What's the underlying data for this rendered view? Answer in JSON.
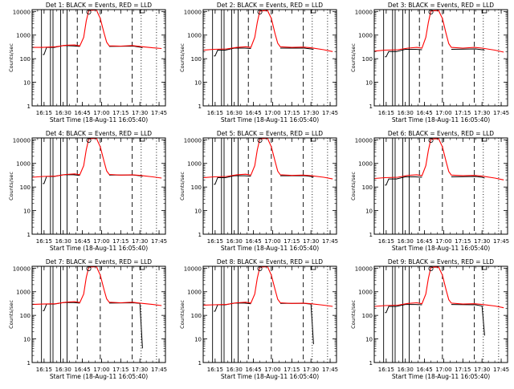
{
  "chart_data": {
    "type": "line",
    "yscale": "log",
    "ylabel": "Counts/sec",
    "xlabel": "Start Time (18-Aug-11 16:05:40)",
    "yticks": [
      "1",
      "10",
      "100",
      "1000",
      "10000"
    ],
    "xticks": [
      "16:15",
      "16:30",
      "16:45",
      "17:00",
      "17:15",
      "17:30",
      "17:45"
    ],
    "ylim": [
      1,
      12000
    ],
    "xlim": [
      "16:05:40",
      "17:50"
    ],
    "series_colors": {
      "events": "#000000",
      "lld": "#ff0000"
    },
    "panels": [
      {
        "title": "Det 1: BLACK = Events, RED = LLD",
        "lld": [
          [
            "16:06",
            300
          ],
          [
            "16:14",
            300
          ],
          [
            "16:24",
            320
          ],
          [
            "16:32",
            370
          ],
          [
            "16:39",
            380
          ],
          [
            "16:43",
            350
          ],
          [
            "16:46",
            800
          ],
          [
            "16:48",
            4000
          ],
          [
            "16:50",
            11000
          ],
          [
            "16:56",
            11500
          ],
          [
            "16:59",
            5000
          ],
          [
            "17:02",
            1200
          ],
          [
            "17:04",
            500
          ],
          [
            "17:06",
            350
          ],
          [
            "17:15",
            340
          ],
          [
            "17:24",
            360
          ],
          [
            "17:30",
            330
          ],
          [
            "17:40",
            290
          ],
          [
            "17:47",
            270
          ]
        ],
        "events": [
          [
            "16:14",
            150
          ],
          [
            "16:15",
            150
          ],
          [
            "16:17",
            300
          ],
          [
            "16:23",
            300
          ],
          [
            "16:30",
            360
          ],
          [
            "16:38",
            350
          ],
          [
            "16:43",
            330
          ],
          [
            "17:06",
            330
          ],
          [
            "17:25",
            340
          ],
          [
            "17:30",
            310
          ],
          [
            "17:32",
            290
          ]
        ]
      },
      {
        "title": "Det 2: BLACK = Events, RED = LLD",
        "lld": [
          [
            "16:06",
            230
          ],
          [
            "16:14",
            250
          ],
          [
            "16:24",
            260
          ],
          [
            "16:32",
            300
          ],
          [
            "16:39",
            320
          ],
          [
            "16:43",
            300
          ],
          [
            "16:46",
            800
          ],
          [
            "16:48",
            3500
          ],
          [
            "16:50",
            10500
          ],
          [
            "16:56",
            11000
          ],
          [
            "16:59",
            5000
          ],
          [
            "17:02",
            1100
          ],
          [
            "17:04",
            450
          ],
          [
            "17:06",
            320
          ],
          [
            "17:15",
            300
          ],
          [
            "17:24",
            310
          ],
          [
            "17:30",
            290
          ],
          [
            "17:40",
            240
          ],
          [
            "17:47",
            200
          ]
        ],
        "events": [
          [
            "16:14",
            130
          ],
          [
            "16:15",
            130
          ],
          [
            "16:17",
            230
          ],
          [
            "16:23",
            230
          ],
          [
            "16:30",
            280
          ],
          [
            "16:38",
            280
          ],
          [
            "16:43",
            270
          ],
          [
            "17:06",
            280
          ],
          [
            "17:25",
            280
          ],
          [
            "17:30",
            260
          ],
          [
            "17:32",
            250
          ]
        ]
      },
      {
        "title": "Det 3: BLACK = Events, RED = LLD",
        "lld": [
          [
            "16:06",
            210
          ],
          [
            "16:14",
            230
          ],
          [
            "16:24",
            240
          ],
          [
            "16:32",
            280
          ],
          [
            "16:39",
            300
          ],
          [
            "16:43",
            280
          ],
          [
            "16:46",
            800
          ],
          [
            "16:48",
            3500
          ],
          [
            "16:50",
            10500
          ],
          [
            "16:56",
            11000
          ],
          [
            "16:59",
            5000
          ],
          [
            "17:02",
            1100
          ],
          [
            "17:04",
            430
          ],
          [
            "17:06",
            300
          ],
          [
            "17:15",
            280
          ],
          [
            "17:24",
            300
          ],
          [
            "17:30",
            280
          ],
          [
            "17:40",
            230
          ],
          [
            "17:47",
            190
          ]
        ],
        "events": [
          [
            "16:14",
            120
          ],
          [
            "16:15",
            120
          ],
          [
            "16:17",
            200
          ],
          [
            "16:23",
            200
          ],
          [
            "16:30",
            250
          ],
          [
            "16:38",
            250
          ],
          [
            "16:43",
            240
          ],
          [
            "17:06",
            250
          ],
          [
            "17:25",
            260
          ],
          [
            "17:30",
            240
          ],
          [
            "17:32",
            230
          ]
        ]
      },
      {
        "title": "Det 4: BLACK = Events, RED = LLD",
        "lld": [
          [
            "16:06",
            260
          ],
          [
            "16:14",
            280
          ],
          [
            "16:24",
            290
          ],
          [
            "16:32",
            340
          ],
          [
            "16:39",
            360
          ],
          [
            "16:43",
            330
          ],
          [
            "16:46",
            800
          ],
          [
            "16:48",
            3800
          ],
          [
            "16:50",
            11000
          ],
          [
            "16:56",
            11500
          ],
          [
            "16:59",
            5000
          ],
          [
            "17:02",
            1200
          ],
          [
            "17:04",
            480
          ],
          [
            "17:06",
            340
          ],
          [
            "17:15",
            320
          ],
          [
            "17:24",
            330
          ],
          [
            "17:30",
            310
          ],
          [
            "17:40",
            270
          ],
          [
            "17:47",
            240
          ]
        ],
        "events": [
          [
            "16:14",
            140
          ],
          [
            "16:15",
            140
          ],
          [
            "16:17",
            280
          ],
          [
            "16:23",
            280
          ],
          [
            "16:30",
            330
          ],
          [
            "16:38",
            330
          ],
          [
            "16:43",
            310
          ],
          [
            "17:06",
            320
          ],
          [
            "17:25",
            320
          ],
          [
            "17:30",
            300
          ],
          [
            "17:32",
            280
          ]
        ]
      },
      {
        "title": "Det 5: BLACK = Events, RED = LLD",
        "lld": [
          [
            "16:06",
            250
          ],
          [
            "16:14",
            270
          ],
          [
            "16:24",
            280
          ],
          [
            "16:32",
            330
          ],
          [
            "16:39",
            350
          ],
          [
            "16:43",
            320
          ],
          [
            "16:46",
            800
          ],
          [
            "16:48",
            3800
          ],
          [
            "16:50",
            11000
          ],
          [
            "16:56",
            11500
          ],
          [
            "16:59",
            5000
          ],
          [
            "17:02",
            1200
          ],
          [
            "17:04",
            470
          ],
          [
            "17:06",
            330
          ],
          [
            "17:15",
            310
          ],
          [
            "17:24",
            320
          ],
          [
            "17:30",
            300
          ],
          [
            "17:40",
            260
          ],
          [
            "17:47",
            220
          ]
        ],
        "events": [
          [
            "16:14",
            130
          ],
          [
            "16:15",
            130
          ],
          [
            "16:17",
            250
          ],
          [
            "16:23",
            250
          ],
          [
            "16:30",
            300
          ],
          [
            "16:38",
            300
          ],
          [
            "16:43",
            290
          ],
          [
            "17:06",
            300
          ],
          [
            "17:25",
            300
          ],
          [
            "17:30",
            280
          ],
          [
            "17:32",
            260
          ]
        ]
      },
      {
        "title": "Det 6: BLACK = Events, RED = LLD",
        "lld": [
          [
            "16:06",
            230
          ],
          [
            "16:14",
            250
          ],
          [
            "16:24",
            260
          ],
          [
            "16:32",
            310
          ],
          [
            "16:39",
            330
          ],
          [
            "16:43",
            300
          ],
          [
            "16:46",
            800
          ],
          [
            "16:48",
            3600
          ],
          [
            "16:50",
            10800
          ],
          [
            "16:56",
            11200
          ],
          [
            "16:59",
            5000
          ],
          [
            "17:02",
            1150
          ],
          [
            "17:04",
            450
          ],
          [
            "17:06",
            320
          ],
          [
            "17:15",
            300
          ],
          [
            "17:24",
            310
          ],
          [
            "17:30",
            290
          ],
          [
            "17:40",
            240
          ],
          [
            "17:47",
            200
          ]
        ],
        "events": [
          [
            "16:14",
            120
          ],
          [
            "16:15",
            120
          ],
          [
            "16:17",
            220
          ],
          [
            "16:23",
            220
          ],
          [
            "16:30",
            270
          ],
          [
            "16:38",
            270
          ],
          [
            "16:43",
            260
          ],
          [
            "17:06",
            270
          ],
          [
            "17:25",
            280
          ],
          [
            "17:30",
            260
          ],
          [
            "17:32",
            240
          ]
        ]
      },
      {
        "title": "Det 7: BLACK = Events, RED = LLD",
        "lld": [
          [
            "16:06",
            290
          ],
          [
            "16:14",
            300
          ],
          [
            "16:24",
            310
          ],
          [
            "16:32",
            360
          ],
          [
            "16:39",
            380
          ],
          [
            "16:43",
            350
          ],
          [
            "16:46",
            800
          ],
          [
            "16:48",
            4000
          ],
          [
            "16:50",
            11000
          ],
          [
            "16:56",
            11500
          ],
          [
            "16:59",
            5000
          ],
          [
            "17:02",
            1200
          ],
          [
            "17:04",
            500
          ],
          [
            "17:06",
            360
          ],
          [
            "17:15",
            340
          ],
          [
            "17:24",
            360
          ],
          [
            "17:30",
            330
          ],
          [
            "17:40",
            290
          ],
          [
            "17:47",
            260
          ]
        ],
        "events": [
          [
            "16:14",
            160
          ],
          [
            "16:15",
            160
          ],
          [
            "16:17",
            300
          ],
          [
            "16:23",
            300
          ],
          [
            "16:30",
            350
          ],
          [
            "16:38",
            350
          ],
          [
            "16:43",
            330
          ],
          [
            "17:06",
            330
          ],
          [
            "17:25",
            340
          ],
          [
            "17:30",
            320
          ],
          [
            "17:32",
            4
          ]
        ]
      },
      {
        "title": "Det 8: BLACK = Events, RED = LLD",
        "lld": [
          [
            "16:06",
            270
          ],
          [
            "16:14",
            280
          ],
          [
            "16:24",
            290
          ],
          [
            "16:32",
            340
          ],
          [
            "16:39",
            360
          ],
          [
            "16:43",
            330
          ],
          [
            "16:46",
            800
          ],
          [
            "16:48",
            3800
          ],
          [
            "16:50",
            11000
          ],
          [
            "16:56",
            11500
          ],
          [
            "16:59",
            5000
          ],
          [
            "17:02",
            1200
          ],
          [
            "17:04",
            480
          ],
          [
            "17:06",
            340
          ],
          [
            "17:15",
            320
          ],
          [
            "17:24",
            330
          ],
          [
            "17:30",
            310
          ],
          [
            "17:40",
            270
          ],
          [
            "17:47",
            240
          ]
        ],
        "events": [
          [
            "16:14",
            150
          ],
          [
            "16:15",
            150
          ],
          [
            "16:17",
            280
          ],
          [
            "16:23",
            280
          ],
          [
            "16:30",
            330
          ],
          [
            "16:38",
            330
          ],
          [
            "16:43",
            310
          ],
          [
            "17:06",
            320
          ],
          [
            "17:25",
            320
          ],
          [
            "17:30",
            300
          ],
          [
            "17:32",
            6
          ]
        ]
      },
      {
        "title": "Det 9: BLACK = Events, RED = LLD",
        "lld": [
          [
            "16:06",
            240
          ],
          [
            "16:14",
            260
          ],
          [
            "16:24",
            270
          ],
          [
            "16:32",
            320
          ],
          [
            "16:39",
            340
          ],
          [
            "16:43",
            310
          ],
          [
            "16:46",
            800
          ],
          [
            "16:48",
            3700
          ],
          [
            "16:50",
            10800
          ],
          [
            "16:56",
            11200
          ],
          [
            "16:59",
            5000
          ],
          [
            "17:02",
            1150
          ],
          [
            "17:04",
            460
          ],
          [
            "17:06",
            330
          ],
          [
            "17:15",
            300
          ],
          [
            "17:24",
            310
          ],
          [
            "17:30",
            290
          ],
          [
            "17:40",
            250
          ],
          [
            "17:47",
            210
          ]
        ],
        "events": [
          [
            "16:14",
            130
          ],
          [
            "16:15",
            130
          ],
          [
            "16:17",
            240
          ],
          [
            "16:23",
            240
          ],
          [
            "16:30",
            290
          ],
          [
            "16:38",
            290
          ],
          [
            "16:43",
            280
          ],
          [
            "17:06",
            290
          ],
          [
            "17:25",
            280
          ],
          [
            "17:30",
            250
          ],
          [
            "17:32",
            14
          ]
        ]
      }
    ],
    "solid_markers": [
      "16:13",
      "16:20",
      "16:22",
      "16:28",
      "16:33"
    ],
    "dashed_markers": [
      "16:41",
      "16:59",
      "17:24"
    ],
    "dotted_markers": [
      "17:31",
      "17:43"
    ],
    "dropout_solid": [
      "16:20",
      "16:28",
      "16:33"
    ],
    "dropout_dashed": [
      "16:41",
      "16:59"
    ],
    "symbol_markers": [
      "16:50",
      "17:32"
    ]
  }
}
